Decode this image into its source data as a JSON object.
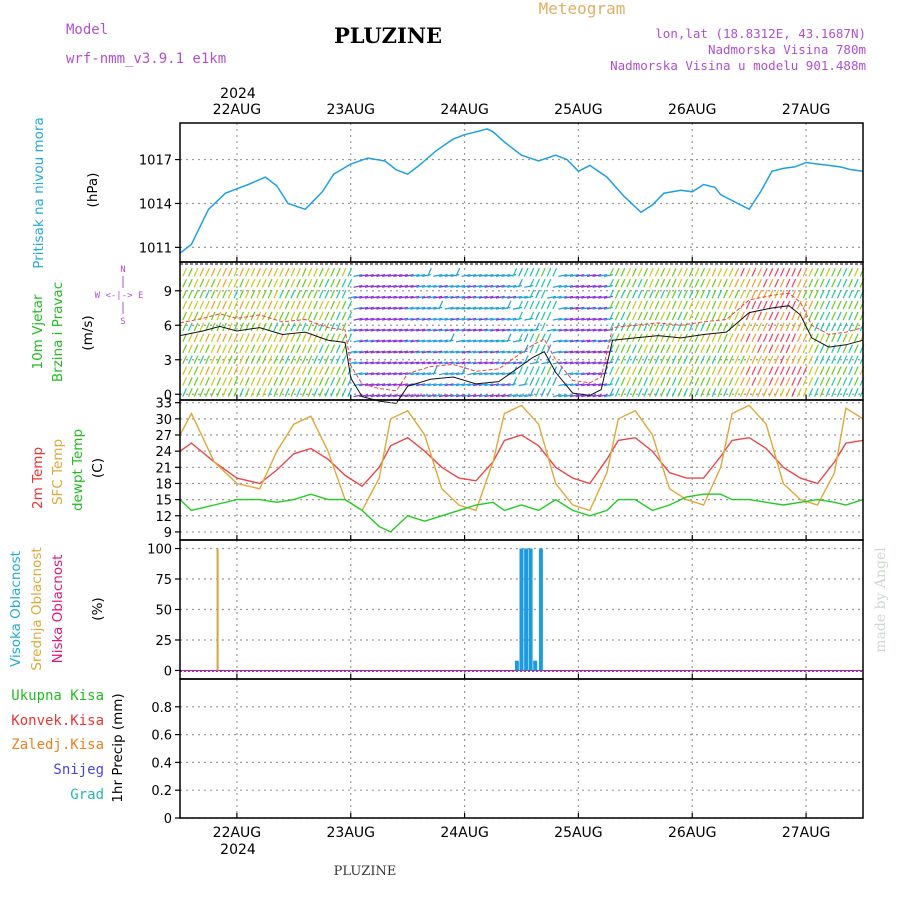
{
  "header": {
    "model_label": "Model",
    "model_name": "wrf-nmm_v3.9.1  e1km",
    "station": "PLUZINE",
    "meteogram": "Meteogram",
    "lonlat": "lon,lat (18.8312E, 43.1687N)",
    "altitude": "Nadmorska Visina 780m",
    "model_altitude": "Nadmorska Visina u modelu 901.488m"
  },
  "footer": {
    "station": "PLUZINE",
    "credit": "made by Angel"
  },
  "time_axis": {
    "year": "2024",
    "days": [
      "22AUG",
      "23AUG",
      "24AUG",
      "25AUG",
      "26AUG",
      "27AUG"
    ],
    "start_day": 21.5,
    "end_day": 27.5
  },
  "labels": {
    "pressure": "Pritisak na nivou mora",
    "pressure_unit": "(hPa)",
    "wind_speed": "10m Vjetar",
    "wind_dir": "Brzina i Pravac",
    "wind_unit": "(m/s)",
    "compass": "W <-|-> E",
    "compass_s": "S",
    "compass_n": "N",
    "temp_2m": "2m Temp",
    "temp_sfc": "SFC Temp",
    "temp_dew": "dewpt Temp",
    "temp_unit": "(C)",
    "cloud_high": "Visoka Oblacnost",
    "cloud_mid": "Srednja Oblacnost",
    "cloud_low": "Niska Oblacnost",
    "cloud_unit": "(%)",
    "precip_total": "Ukupna Kisa",
    "precip_conv": "Konvek.Kisa",
    "precip_frozen": "Zaledj.Kisa",
    "precip_snow": "Snijeg",
    "precip_grad": "Grad",
    "precip_unit": "1hr Precip (mm)"
  },
  "colors": {
    "pressure": "#1ea0e6",
    "temp_2m": "#e84848",
    "temp_sfc": "#e0a83a",
    "temp_dew": "#22cc22",
    "cloud_high": "#1e9be0",
    "cloud_mid": "#d4a43c",
    "cloud_low": "#e0157a",
    "title_purple": "#b050d0",
    "meteogram_orange": "#e0b060",
    "label_cyan": "#22aadd",
    "label_green": "#22bb22",
    "label_red": "#ee3333",
    "label_orange": "#f08020",
    "label_blue": "#4444ee",
    "label_teal": "#22bbaa"
  },
  "chart_data": [
    {
      "type": "line",
      "name": "pressure",
      "ylim": [
        1010,
        1019.5
      ],
      "yticks": [
        1011,
        1014,
        1017
      ],
      "grid": true,
      "x": [
        21.5,
        21.6,
        21.75,
        21.9,
        22.0,
        22.1,
        22.25,
        22.35,
        22.45,
        22.6,
        22.75,
        22.85,
        23.0,
        23.15,
        23.3,
        23.4,
        23.5,
        23.6,
        23.75,
        23.9,
        24.0,
        24.1,
        24.2,
        24.25,
        24.35,
        24.5,
        24.65,
        24.8,
        24.9,
        25.0,
        25.1,
        25.25,
        25.4,
        25.55,
        25.65,
        25.75,
        25.9,
        26.0,
        26.1,
        26.2,
        26.25,
        26.4,
        26.5,
        26.6,
        26.7,
        26.8,
        26.9,
        27.0,
        27.1,
        27.2,
        27.3,
        27.4,
        27.5
      ],
      "y": [
        1010.6,
        1011.2,
        1013.6,
        1014.7,
        1015.0,
        1015.3,
        1015.8,
        1015.2,
        1014.0,
        1013.6,
        1014.8,
        1016.0,
        1016.7,
        1017.1,
        1016.9,
        1016.3,
        1016.0,
        1016.6,
        1017.6,
        1018.4,
        1018.7,
        1018.9,
        1019.1,
        1018.9,
        1018.2,
        1017.3,
        1016.9,
        1017.3,
        1017.0,
        1016.2,
        1016.6,
        1015.8,
        1014.5,
        1013.4,
        1013.9,
        1014.7,
        1014.9,
        1014.8,
        1015.3,
        1015.1,
        1014.6,
        1014.0,
        1013.6,
        1014.8,
        1016.2,
        1016.4,
        1016.5,
        1016.8,
        1016.7,
        1016.6,
        1016.5,
        1016.3,
        1016.2
      ]
    },
    {
      "type": "line",
      "name": "wind",
      "ylim": [
        -0.5,
        11.5
      ],
      "yticks": [
        0,
        3,
        6,
        9
      ],
      "grid": true,
      "x": [
        21.5,
        21.7,
        21.85,
        22.0,
        22.2,
        22.4,
        22.6,
        22.8,
        22.95,
        23.0,
        23.1,
        23.25,
        23.4,
        23.5,
        23.7,
        23.9,
        24.1,
        24.3,
        24.5,
        24.6,
        24.7,
        24.8,
        24.95,
        25.1,
        25.2,
        25.3,
        25.5,
        25.7,
        25.9,
        26.1,
        26.3,
        26.5,
        26.7,
        26.85,
        26.95,
        27.05,
        27.2,
        27.35,
        27.5
      ],
      "y": [
        6.2,
        6.6,
        7.0,
        6.6,
        6.9,
        6.3,
        6.5,
        5.8,
        5.6,
        2.5,
        0.9,
        0.5,
        0.3,
        1.8,
        2.4,
        2.6,
        2.0,
        2.2,
        3.6,
        4.3,
        4.8,
        3.0,
        1.2,
        1.0,
        1.5,
        5.8,
        6.0,
        6.2,
        6.0,
        6.3,
        6.5,
        8.2,
        8.6,
        8.8,
        8.0,
        6.0,
        5.2,
        5.4,
        5.8
      ]
    },
    {
      "type": "line",
      "name": "temperature",
      "ylim": [
        7.5,
        33.5
      ],
      "yticks": [
        9,
        12,
        15,
        18,
        21,
        24,
        27,
        30,
        33
      ],
      "grid": true,
      "x": [
        21.5,
        21.6,
        21.8,
        22.0,
        22.2,
        22.35,
        22.5,
        22.65,
        22.8,
        22.95,
        23.1,
        23.25,
        23.35,
        23.5,
        23.65,
        23.8,
        23.95,
        24.1,
        24.25,
        24.35,
        24.5,
        24.65,
        24.8,
        24.95,
        25.1,
        25.25,
        25.35,
        25.5,
        25.65,
        25.8,
        25.95,
        26.1,
        26.25,
        26.35,
        26.5,
        26.65,
        26.8,
        26.95,
        27.1,
        27.25,
        27.35,
        27.5
      ],
      "series": [
        {
          "name": "2m Temp",
          "values": [
            24,
            25.5,
            22,
            19,
            18,
            20.5,
            23.5,
            24.5,
            22.5,
            19.5,
            17.5,
            21,
            25,
            26.5,
            24,
            21,
            19,
            18.5,
            22,
            26,
            27,
            25,
            21,
            19,
            18,
            22.5,
            26,
            26.5,
            24,
            20,
            19,
            19,
            23,
            26,
            26.5,
            24.5,
            21,
            19,
            18,
            22,
            25.5,
            26
          ]
        },
        {
          "name": "SFC Temp",
          "values": [
            27,
            31,
            22,
            18,
            17,
            24,
            29,
            30.5,
            24,
            15,
            13,
            19,
            30,
            31.5,
            27,
            17,
            14,
            13,
            22,
            31,
            32.5,
            29,
            18,
            14,
            13,
            20,
            30,
            31.5,
            27,
            17,
            15,
            14,
            21,
            31,
            32.5,
            29,
            18,
            15,
            14,
            20,
            32,
            30
          ]
        },
        {
          "name": "dewpt Temp",
          "values": [
            15,
            13,
            14,
            15,
            15,
            14.5,
            15,
            16,
            15,
            15,
            13,
            10,
            9,
            12,
            11,
            12,
            13,
            14,
            14.5,
            13,
            14,
            13,
            15,
            13,
            12,
            13,
            15,
            15,
            13,
            14,
            15.5,
            16,
            16,
            15,
            15,
            14.5,
            14,
            14.5,
            15,
            14.5,
            14,
            15
          ]
        }
      ]
    },
    {
      "type": "bar",
      "name": "cloud",
      "ylim": [
        -7,
        107
      ],
      "yticks": [
        0,
        25,
        50,
        75,
        100
      ],
      "grid": true,
      "series": [
        {
          "name": "Srednja Oblacnost",
          "x": [
            21.83
          ],
          "values": [
            100
          ]
        },
        {
          "name": "Visoka Oblacnost",
          "x": [
            24.46,
            24.5,
            24.54,
            24.58,
            24.62,
            24.67
          ],
          "values": [
            8,
            100,
            100,
            100,
            8,
            100
          ]
        }
      ]
    },
    {
      "type": "bar",
      "name": "precip",
      "ylim": [
        0,
        1
      ],
      "yticks": [
        0,
        0.2,
        0.4,
        0.6,
        0.8
      ],
      "grid": true,
      "values": []
    }
  ]
}
